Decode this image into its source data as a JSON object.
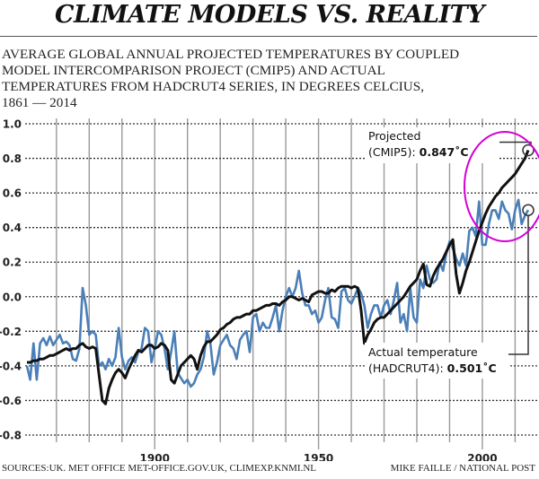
{
  "header": {
    "title": "CLIMATE MODELS VS. REALITY",
    "subtitle_lines": [
      "AVERAGE GLOBAL ANNUAL PROJECTED TEMPERATURES BY COUPLED",
      "MODEL INTERCOMPARISON PROJECT (CMIP5) AND ACTUAL",
      "TEMPERATURES FROM HADCRUT4 SERIES, IN DEGREES CELCIUS,",
      "1861 — 2014"
    ]
  },
  "footer": {
    "sources": "SOURCES:UK. MET OFFICE MET-OFFICE.GOV.UK, CLIMEXP.KNMI.NL",
    "credit": "MIKE FAILLE  / NATIONAL POST"
  },
  "colors": {
    "projected": "#111111",
    "actual": "#4a7fb8",
    "highlight": "#d400d4",
    "grid_v": "#999999",
    "grid_h": "#333333"
  },
  "annotations": {
    "projected_line1": "Projected",
    "projected_line2_label": "(CMIP5): ",
    "projected_value": "0.847˚C",
    "actual_line1": "Actual temperature",
    "actual_line2_label": "(HADCRUT4): ",
    "actual_value": "0.501˚C"
  },
  "chart_data": {
    "type": "line",
    "title": "CLIMATE MODELS VS. REALITY",
    "xlabel": "",
    "ylabel": "",
    "xlim": [
      1861,
      2014
    ],
    "ylim": [
      -0.8,
      1.0
    ],
    "yticks": [
      "1.0",
      "0.8",
      "0.6",
      "0.4",
      "0.2",
      "0.0",
      "-0.2",
      "-0.4",
      "-0.6",
      "-0.8"
    ],
    "ytick_values": [
      1.0,
      0.8,
      0.6,
      0.4,
      0.2,
      0.0,
      -0.2,
      -0.4,
      -0.6,
      -0.8
    ],
    "xticks": [
      "1900",
      "1950",
      "2000"
    ],
    "xtick_values": [
      1900,
      1950,
      2000
    ],
    "grid": true,
    "x_start": 1861,
    "series": [
      {
        "name": "Projected (CMIP5)",
        "end_value": 0.847,
        "values": [
          -0.38,
          -0.38,
          -0.37,
          -0.37,
          -0.36,
          -0.36,
          -0.35,
          -0.34,
          -0.34,
          -0.33,
          -0.32,
          -0.31,
          -0.3,
          -0.31,
          -0.3,
          -0.3,
          -0.28,
          -0.27,
          -0.29,
          -0.3,
          -0.29,
          -0.3,
          -0.45,
          -0.6,
          -0.62,
          -0.53,
          -0.48,
          -0.44,
          -0.42,
          -0.44,
          -0.47,
          -0.42,
          -0.38,
          -0.34,
          -0.31,
          -0.32,
          -0.3,
          -0.28,
          -0.28,
          -0.3,
          -0.29,
          -0.27,
          -0.28,
          -0.31,
          -0.48,
          -0.5,
          -0.45,
          -0.4,
          -0.38,
          -0.36,
          -0.34,
          -0.36,
          -0.42,
          -0.34,
          -0.29,
          -0.26,
          -0.26,
          -0.24,
          -0.22,
          -0.19,
          -0.18,
          -0.16,
          -0.15,
          -0.13,
          -0.12,
          -0.12,
          -0.11,
          -0.1,
          -0.1,
          -0.08,
          -0.08,
          -0.07,
          -0.06,
          -0.05,
          -0.05,
          -0.04,
          -0.04,
          -0.05,
          -0.03,
          -0.02,
          0.0,
          0.0,
          -0.01,
          -0.02,
          -0.01,
          -0.02,
          -0.03,
          0.01,
          0.02,
          0.03,
          0.03,
          0.02,
          0.02,
          0.04,
          0.03,
          0.05,
          0.06,
          0.06,
          0.06,
          0.05,
          0.06,
          0.05,
          -0.08,
          -0.27,
          -0.22,
          -0.19,
          -0.15,
          -0.13,
          -0.12,
          -0.12,
          -0.1,
          -0.08,
          -0.06,
          -0.04,
          -0.02,
          0.0,
          0.03,
          0.06,
          0.08,
          0.1,
          0.15,
          0.19,
          0.07,
          0.06,
          0.12,
          0.16,
          0.19,
          0.22,
          0.26,
          0.3,
          0.33,
          0.13,
          0.02,
          0.08,
          0.15,
          0.2,
          0.26,
          0.32,
          0.38,
          0.43,
          0.48,
          0.52,
          0.55,
          0.58,
          0.6,
          0.63,
          0.65,
          0.67,
          0.69,
          0.71,
          0.74,
          0.77,
          0.8,
          0.847
        ]
      },
      {
        "name": "Actual (HADCRUT4)",
        "end_value": 0.501,
        "values": [
          -0.4,
          -0.48,
          -0.27,
          -0.48,
          -0.27,
          -0.24,
          -0.28,
          -0.23,
          -0.28,
          -0.25,
          -0.22,
          -0.27,
          -0.26,
          -0.28,
          -0.36,
          -0.37,
          -0.3,
          0.05,
          -0.05,
          -0.22,
          -0.2,
          -0.22,
          -0.4,
          -0.38,
          -0.42,
          -0.36,
          -0.4,
          -0.35,
          -0.18,
          -0.35,
          -0.42,
          -0.37,
          -0.35,
          -0.38,
          -0.32,
          -0.3,
          -0.18,
          -0.2,
          -0.38,
          -0.3,
          -0.2,
          -0.22,
          -0.3,
          -0.42,
          -0.32,
          -0.2,
          -0.44,
          -0.47,
          -0.5,
          -0.48,
          -0.52,
          -0.5,
          -0.45,
          -0.42,
          -0.35,
          -0.2,
          -0.27,
          -0.45,
          -0.38,
          -0.28,
          -0.25,
          -0.22,
          -0.28,
          -0.3,
          -0.36,
          -0.25,
          -0.22,
          -0.2,
          -0.32,
          -0.12,
          -0.1,
          -0.2,
          -0.15,
          -0.18,
          -0.18,
          -0.12,
          -0.05,
          -0.2,
          -0.08,
          0.0,
          0.05,
          0.0,
          0.05,
          0.15,
          0.02,
          -0.05,
          -0.05,
          -0.1,
          -0.08,
          -0.15,
          -0.12,
          -0.02,
          0.05,
          -0.12,
          -0.13,
          -0.18,
          0.03,
          0.05,
          -0.02,
          -0.04,
          0.0,
          0.05,
          0.02,
          -0.05,
          -0.18,
          -0.1,
          -0.05,
          -0.05,
          -0.12,
          -0.05,
          -0.02,
          -0.1,
          -0.02,
          0.08,
          -0.15,
          -0.1,
          -0.2,
          0.05,
          -0.12,
          -0.15,
          0.1,
          0.05,
          0.18,
          0.1,
          0.08,
          0.1,
          0.2,
          0.15,
          0.25,
          0.32,
          0.28,
          0.22,
          0.18,
          0.25,
          0.18,
          0.38,
          0.4,
          0.35,
          0.55,
          0.3,
          0.3,
          0.42,
          0.5,
          0.5,
          0.45,
          0.55,
          0.5,
          0.48,
          0.39,
          0.5,
          0.56,
          0.42,
          0.47,
          0.501
        ]
      }
    ]
  }
}
